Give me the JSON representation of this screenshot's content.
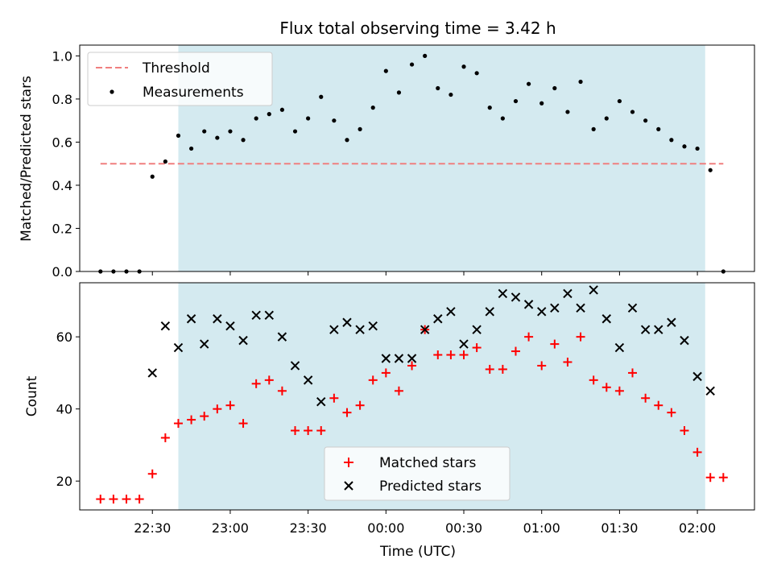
{
  "chart_data": [
    {
      "type": "scatter",
      "title": "Flux total observing time = 3.42 h",
      "xlabel": "",
      "ylabel": "Matched/Predicted stars",
      "ylim": [
        0,
        1.05
      ],
      "yticks": [
        0.0,
        0.2,
        0.4,
        0.6,
        0.8,
        1.0
      ],
      "ytick_labels": [
        "0.0",
        "0.2",
        "0.4",
        "0.6",
        "0.8",
        "1.0"
      ],
      "xlim": [
        "22:02",
        "02:22"
      ],
      "observing_window": [
        "22:40",
        "02:03"
      ],
      "shade_color": "#d4eaf0",
      "threshold": {
        "name": "Threshold",
        "value": 0.5,
        "x_range": [
          "22:10",
          "02:10"
        ],
        "color": "#f07f7f",
        "style": "dashed"
      },
      "series": [
        {
          "name": "Measurements",
          "marker": "dot",
          "color": "#000000",
          "x": [
            "22:10",
            "22:15",
            "22:20",
            "22:25",
            "22:30",
            "22:35",
            "22:40",
            "22:45",
            "22:50",
            "22:55",
            "23:00",
            "23:05",
            "23:10",
            "23:15",
            "23:20",
            "23:25",
            "23:30",
            "23:35",
            "23:40",
            "23:45",
            "23:50",
            "23:55",
            "00:00",
            "00:05",
            "00:10",
            "00:15",
            "00:20",
            "00:25",
            "00:30",
            "00:35",
            "00:40",
            "00:45",
            "00:50",
            "00:55",
            "01:00",
            "01:05",
            "01:10",
            "01:15",
            "01:20",
            "01:25",
            "01:30",
            "01:35",
            "01:40",
            "01:45",
            "01:50",
            "01:55",
            "02:00",
            "02:05",
            "02:10"
          ],
          "y": [
            0.0,
            0.0,
            0.0,
            0.0,
            0.44,
            0.51,
            0.63,
            0.57,
            0.65,
            0.62,
            0.65,
            0.61,
            0.71,
            0.73,
            0.75,
            0.65,
            0.71,
            0.81,
            0.7,
            0.61,
            0.66,
            0.76,
            0.93,
            0.83,
            0.96,
            1.0,
            0.85,
            0.82,
            0.95,
            0.92,
            0.76,
            0.71,
            0.79,
            0.87,
            0.78,
            0.85,
            0.74,
            0.88,
            0.66,
            0.71,
            0.79,
            0.74,
            0.7,
            0.66,
            0.61,
            0.58,
            0.57,
            0.47,
            0.0
          ]
        }
      ],
      "legend": {
        "position": "top-left",
        "entries": [
          "Threshold",
          "Measurements"
        ]
      }
    },
    {
      "type": "scatter",
      "xlabel": "Time (UTC)",
      "ylabel": "Count",
      "ylim": [
        12,
        75
      ],
      "yticks": [
        20,
        40,
        60
      ],
      "ytick_labels": [
        "20",
        "40",
        "60"
      ],
      "xticks": [
        "22:30",
        "23:00",
        "23:30",
        "00:00",
        "00:30",
        "01:00",
        "01:30",
        "02:00"
      ],
      "xtick_labels": [
        "22:30",
        "23:00",
        "23:30",
        "00:00",
        "00:30",
        "01:00",
        "01:30",
        "02:00"
      ],
      "series": [
        {
          "name": "Matched stars",
          "marker": "plus",
          "color": "#ff0000",
          "x": [
            "22:10",
            "22:15",
            "22:20",
            "22:25",
            "22:30",
            "22:35",
            "22:40",
            "22:45",
            "22:50",
            "22:55",
            "23:00",
            "23:05",
            "23:10",
            "23:15",
            "23:20",
            "23:25",
            "23:30",
            "23:35",
            "23:40",
            "23:45",
            "23:50",
            "23:55",
            "00:00",
            "00:05",
            "00:10",
            "00:15",
            "00:20",
            "00:25",
            "00:30",
            "00:35",
            "00:40",
            "00:45",
            "00:50",
            "00:55",
            "01:00",
            "01:05",
            "01:10",
            "01:15",
            "01:20",
            "01:25",
            "01:30",
            "01:35",
            "01:40",
            "01:45",
            "01:50",
            "01:55",
            "02:00",
            "02:05",
            "02:10"
          ],
          "y": [
            15,
            15,
            15,
            15,
            22,
            32,
            36,
            37,
            38,
            40,
            41,
            36,
            47,
            48,
            45,
            34,
            34,
            34,
            43,
            39,
            41,
            48,
            50,
            45,
            52,
            62,
            55,
            55,
            55,
            57,
            51,
            51,
            56,
            60,
            52,
            58,
            53,
            60,
            48,
            46,
            45,
            50,
            43,
            41,
            39,
            34,
            28,
            21,
            21
          ]
        },
        {
          "name": "Predicted stars",
          "marker": "x",
          "color": "#000000",
          "x": [
            "22:30",
            "22:35",
            "22:40",
            "22:45",
            "22:50",
            "22:55",
            "23:00",
            "23:05",
            "23:10",
            "23:15",
            "23:20",
            "23:25",
            "23:30",
            "23:35",
            "23:40",
            "23:45",
            "23:50",
            "23:55",
            "00:00",
            "00:05",
            "00:10",
            "00:15",
            "00:20",
            "00:25",
            "00:30",
            "00:35",
            "00:40",
            "00:45",
            "00:50",
            "00:55",
            "01:00",
            "01:05",
            "01:10",
            "01:15",
            "01:20",
            "01:25",
            "01:30",
            "01:35",
            "01:40",
            "01:45",
            "01:50",
            "01:55",
            "02:00",
            "02:05"
          ],
          "y": [
            50,
            63,
            57,
            65,
            58,
            65,
            63,
            59,
            66,
            66,
            60,
            52,
            48,
            42,
            62,
            64,
            62,
            63,
            54,
            54,
            54,
            62,
            65,
            67,
            58,
            62,
            67,
            72,
            71,
            69,
            67,
            68,
            72,
            68,
            73,
            65,
            57,
            68,
            62,
            62,
            64,
            59,
            49,
            45
          ]
        }
      ],
      "legend": {
        "position": "lower-center",
        "entries": [
          "Matched stars",
          "Predicted stars"
        ]
      }
    }
  ]
}
